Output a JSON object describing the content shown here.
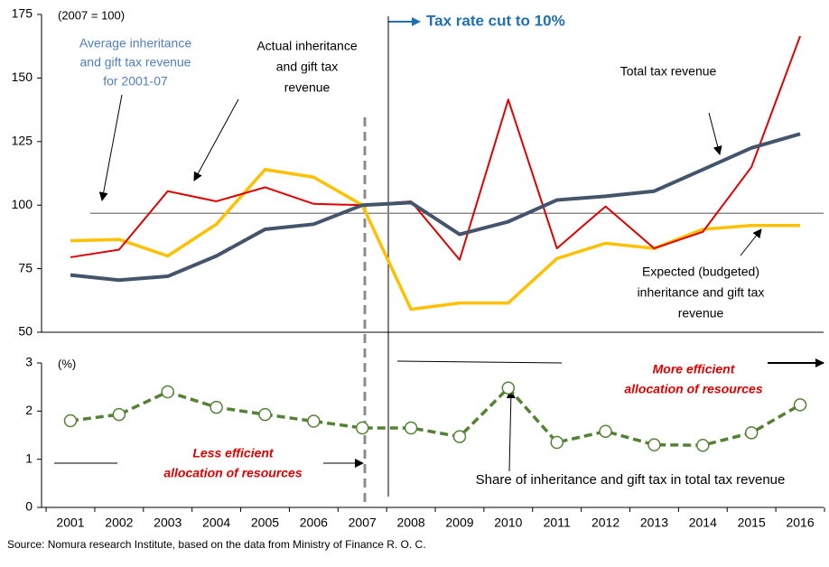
{
  "chart_data": [
    {
      "type": "line",
      "unit_label": "(2007 = 100)",
      "ylim": [
        50,
        175
      ],
      "yticks": [
        50,
        75,
        100,
        125,
        150,
        175
      ],
      "reference_line": {
        "value": 96.8,
        "color": "#8c8c8c"
      },
      "series": [
        {
          "name": "Total tax revenue",
          "color": "#44546a",
          "values": [
            72.5,
            70.5,
            72,
            80,
            90.5,
            92.5,
            100,
            101,
            88.5,
            93.5,
            102,
            103.5,
            105.5,
            114,
            122.5,
            128
          ]
        },
        {
          "name": "Actual inheritance and gift tax revenue",
          "color": "#e00000",
          "values": [
            79.5,
            82.5,
            105.5,
            101.5,
            107,
            100.5,
            100,
            101.5,
            78.5,
            141.5,
            83,
            99.5,
            83,
            89.5,
            115,
            166.5
          ]
        },
        {
          "name": "Expected (budgeted) inheritance and gift tax revenue",
          "color": "#ffc000",
          "values": [
            86,
            86.5,
            80,
            92.5,
            114,
            111,
            100,
            59,
            61.5,
            61.5,
            79,
            85,
            83,
            90.5,
            92,
            92
          ]
        }
      ],
      "annotations": [
        [
          "Average inheritance",
          "and gift tax revenue",
          "for 2001-07"
        ],
        [
          "Actual inheritance",
          "and gift tax",
          "revenue"
        ],
        [
          "Tax rate cut to 10%"
        ],
        [
          "Total tax revenue"
        ],
        [
          "Expected (budgeted)",
          "inheritance  and gift tax",
          "revenue"
        ]
      ]
    },
    {
      "type": "line",
      "unit_label": "(%)",
      "ylim": [
        0,
        3
      ],
      "yticks": [
        0,
        1,
        2,
        3
      ],
      "categories": [
        "2001",
        "2002",
        "2003",
        "2004",
        "2005",
        "2006",
        "2007",
        "2008",
        "2009",
        "2010",
        "2011",
        "2012",
        "2013",
        "2014",
        "2015",
        "2016"
      ],
      "series": [
        {
          "name": "Share of inheritance  and gift tax in total tax revenue",
          "color": "#548235",
          "values": [
            1.8,
            1.93,
            2.4,
            2.08,
            1.93,
            1.79,
            1.65,
            1.65,
            1.47,
            2.48,
            1.35,
            1.58,
            1.3,
            1.29,
            1.55,
            2.13
          ]
        }
      ],
      "annotations": [
        [
          "More efficient",
          "allocation of resources"
        ],
        [
          "Less efficient",
          "allocation of resources"
        ]
      ]
    }
  ],
  "source": "Source: Nomura research Institute, based on the data from Ministry of Finance R. O. C."
}
